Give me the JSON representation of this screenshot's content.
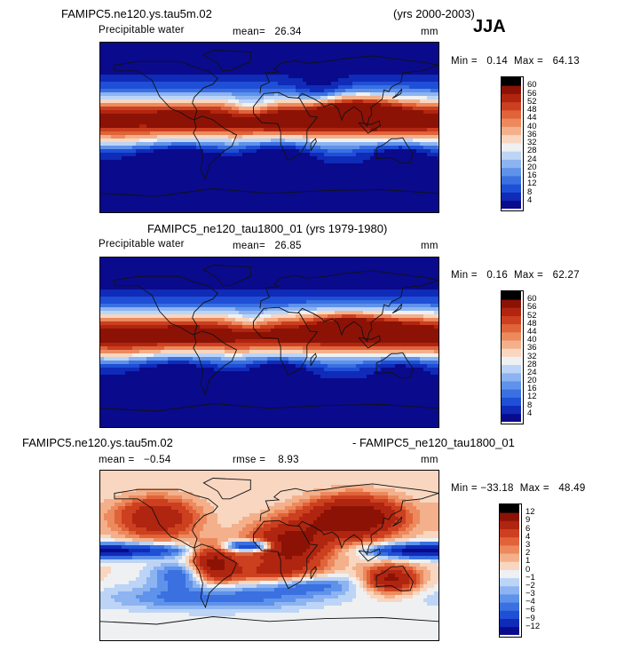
{
  "season": "JJA",
  "colors": {
    "ocean_low": "#0a1fa8",
    "mid": "#f4f2ee",
    "high": "#b01808",
    "coast": "#111111"
  },
  "panels": [
    {
      "header_left": "FAMIPC5.ne120.ys.tau5m.02",
      "header_right": "(yrs 2000-2003)",
      "variable": "Precipitable water",
      "stat_text": "mean=   26.34",
      "units": "mm",
      "minmax": "Min =   0.14  Max =   64.13"
    },
    {
      "header_center": "FAMIPC5_ne120_tau1800_01 (yrs 1979-1980)",
      "variable": "Precipitable water",
      "stat_text": "mean=   26.85",
      "units": "mm",
      "minmax": "Min =   0.16  Max =   62.27"
    },
    {
      "header_left": "FAMIPC5.ne120.ys.tau5m.02",
      "header_right": "- FAMIPC5_ne120_tau1800_01",
      "mean_text": "mean =   −0.54",
      "rmse_text": "rmse =    8.93",
      "units": "mm",
      "minmax": "Min = −33.18  Max =   48.49"
    }
  ],
  "chart_data": [
    {
      "type": "heatmap",
      "title": "FAMIPC5.ne120.ys.tau5m.02 (yrs 2000-2003) JJA",
      "subtitle": "Precipitable water",
      "units": "mm",
      "mean": 26.34,
      "min": 0.14,
      "max": 64.13,
      "colorbar_levels": [
        4,
        8,
        12,
        16,
        20,
        24,
        28,
        32,
        36,
        40,
        44,
        48,
        52,
        56,
        60
      ]
    },
    {
      "type": "heatmap",
      "title": "FAMIPC5_ne120_tau1800_01 (yrs 1979-1980)",
      "subtitle": "Precipitable water",
      "units": "mm",
      "mean": 26.85,
      "min": 0.16,
      "max": 62.27,
      "colorbar_levels": [
        4,
        8,
        12,
        16,
        20,
        24,
        28,
        32,
        36,
        40,
        44,
        48,
        52,
        56,
        60
      ]
    },
    {
      "type": "heatmap",
      "title": "FAMIPC5.ne120.ys.tau5m.02 - FAMIPC5_ne120_tau1800_01",
      "units": "mm",
      "mean": -0.54,
      "rmse": 8.93,
      "min": -33.18,
      "max": 48.49,
      "colorbar_levels": [
        -12,
        -9,
        -6,
        -4,
        -3,
        -2,
        -1,
        0,
        1,
        2,
        3,
        4,
        6,
        9,
        12
      ],
      "colorbar_labels": [
        "−12",
        "−9",
        "−6",
        "−4",
        "−3",
        "−2",
        "−1",
        "0",
        "1",
        "2",
        "3",
        "4",
        "6",
        "9",
        "12"
      ]
    }
  ]
}
